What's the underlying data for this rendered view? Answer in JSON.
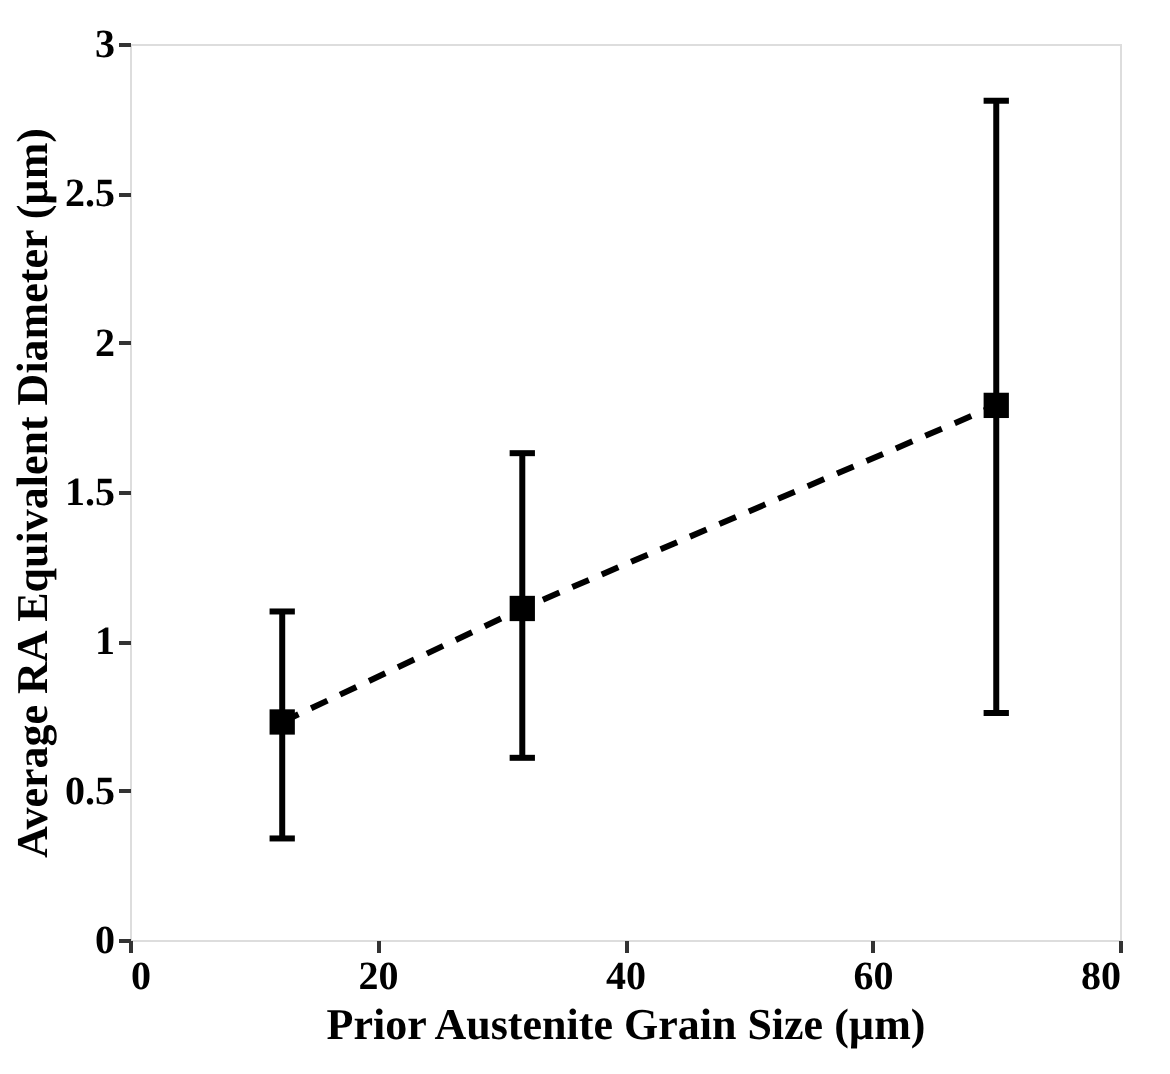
{
  "chart_data": {
    "type": "line",
    "xlabel": "Prior Austenite Grain Size (µm)",
    "ylabel": "Average RA Equivalent Diameter (µm)",
    "x": [
      12.3,
      31.7,
      70.0
    ],
    "series": [
      {
        "color": "#000000",
        "values": [
          0.73,
          1.11,
          1.79
        ],
        "errors": [
          [
            0.34,
            1.1
          ],
          [
            0.61,
            1.63
          ],
          [
            0.76,
            2.81
          ]
        ]
      }
    ],
    "xlim": [
      0,
      80
    ],
    "xticks": [
      0,
      20,
      40,
      60,
      80
    ],
    "ylim": [
      0,
      3
    ],
    "yticks": [
      0,
      0.5,
      1,
      1.5,
      2,
      2.5,
      3
    ],
    "marker": "square",
    "line_style": "dashed",
    "grid": false
  }
}
